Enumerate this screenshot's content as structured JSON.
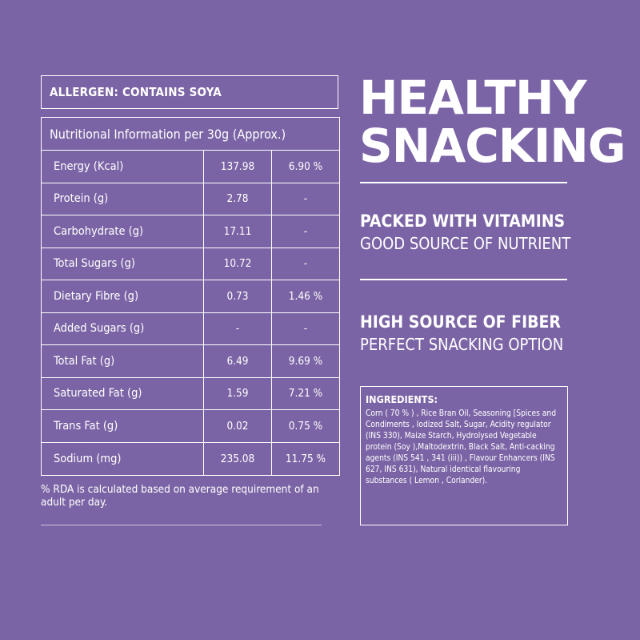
{
  "allergen": "ALLERGEN: CONTAINS SOYA",
  "nutrition": {
    "heading": "Nutritional Information per 30g (Approx.)",
    "rows": [
      {
        "name": "Energy (Kcal)",
        "value": "137.98",
        "rda": "6.90 %"
      },
      {
        "name": "Protein (g)",
        "value": "2.78",
        "rda": "-"
      },
      {
        "name": "Carbohydrate (g)",
        "value": "17.11",
        "rda": "-"
      },
      {
        "name": "Total Sugars (g)",
        "value": "10.72",
        "rda": "-"
      },
      {
        "name": "Dietary Fibre (g)",
        "value": "0.73",
        "rda": "1.46 %"
      },
      {
        "name": "Added Sugars (g)",
        "value": "-",
        "rda": "-"
      },
      {
        "name": "Total Fat (g)",
        "value": "6.49",
        "rda": "9.69 %"
      },
      {
        "name": "Saturated Fat (g)",
        "value": "1.59",
        "rda": "7.21 %"
      },
      {
        "name": "Trans Fat (g)",
        "value": "0.02",
        "rda": "0.75 %"
      },
      {
        "name": "Sodium (mg)",
        "value": "235.08",
        "rda": "11.75 %"
      }
    ],
    "footnote": "% RDA is calculated based on average requirement of an adult per day."
  },
  "headline": {
    "line1": "HEALTHY",
    "line2": "SNACKING"
  },
  "features": [
    {
      "title": "PACKED WITH VITAMINS",
      "subtitle": "GOOD SOURCE OF NUTRIENT"
    },
    {
      "title": "HIGH SOURCE OF FIBER",
      "subtitle": "PERFECT SNACKING OPTION"
    }
  ],
  "ingredients": {
    "title": "INGREDIENTS:",
    "text": "Corn ( 70 % ) , Rice Bran Oil, Seasoning [Spices and Condiments , Iodized Salt, Sugar, Acidity regulator (INS 330), Maize Starch, Hydrolysed Vegetable protein (Soy ),Maltodextrin, Black Salt, Anti-cacking agents (INS 541 , 341 (iii)) , Flavour Enhancers (INS 627, INS 631), Natural identical flavouring substances ( Lemon , Coriander)."
  },
  "colors": {
    "background": "#7b64a5",
    "text": "#ffffff"
  }
}
